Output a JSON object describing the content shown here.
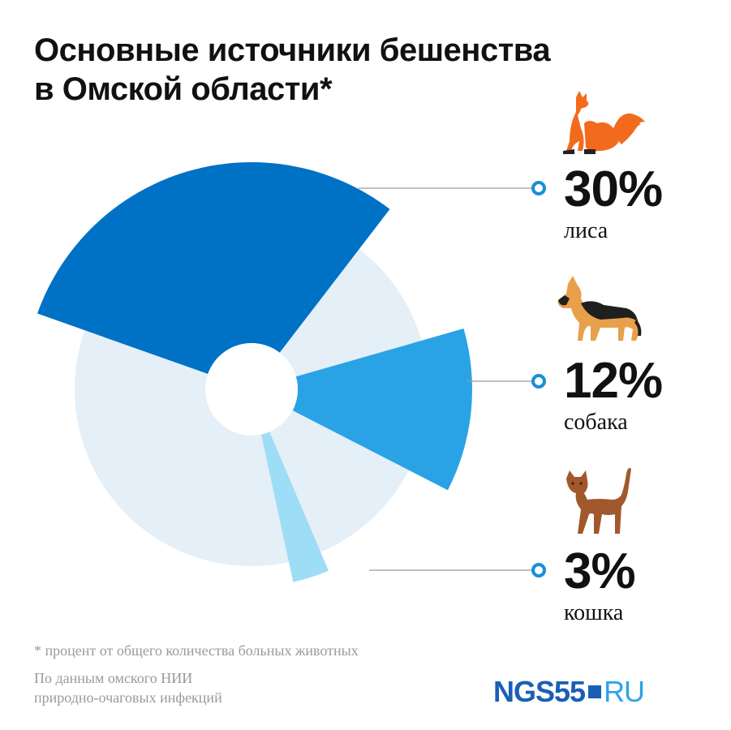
{
  "title": {
    "line1": "Основные источники бешенства",
    "line2": "в Омской области*"
  },
  "chart_data": {
    "type": "pie",
    "title": "Основные источники бешенства в Омской области*",
    "slices": [
      {
        "label": "лиса",
        "value": 30,
        "display": "30%",
        "color": "#0072c6",
        "icon": "fox-icon"
      },
      {
        "label": "собака",
        "value": 12,
        "display": "12%",
        "color": "#2aa3e6",
        "icon": "dog-icon"
      },
      {
        "label": "кошка",
        "value": 3,
        "display": "3%",
        "color": "#9dddf5",
        "icon": "cat-icon"
      }
    ],
    "remainder_color": "#e4eff8",
    "legend_position": "right"
  },
  "footnote": "* процент от общего количества  больных животных",
  "source": {
    "line1": "По данным омского НИИ",
    "line2": "природно-очаговых инфекций"
  },
  "logo": {
    "part1": "NGS55",
    "part2": "RU",
    "color_primary": "#1a5fb4",
    "color_secondary": "#2aa3e8"
  },
  "colors": {
    "leader_line": "#9a9a9a",
    "marker": "#1a8fd6",
    "fox": "#f26b1d",
    "dog_tan": "#e8a04a",
    "dog_black": "#1f1f1f",
    "cat": "#a0582c"
  }
}
